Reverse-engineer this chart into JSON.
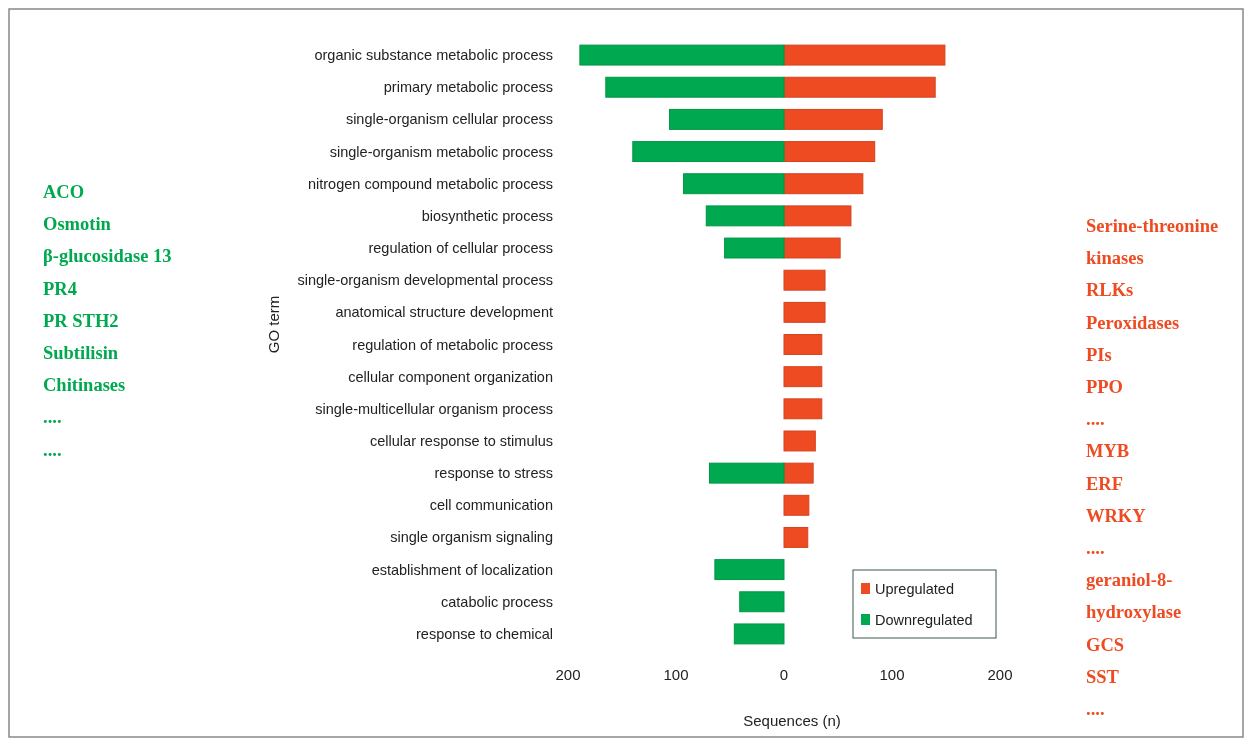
{
  "chart_data": {
    "type": "bar",
    "orientation": "horizontal",
    "xlabel": "Sequences (n)",
    "ylabel": "GO term",
    "categories": [
      "organic substance metabolic process",
      "primary metabolic process",
      "single-organism cellular process",
      "single-organism metabolic process",
      "nitrogen compound metabolic process",
      "biosynthetic process",
      "regulation of cellular process",
      "single-organism developmental process",
      "anatomical structure development",
      "regulation of metabolic process",
      "cellular component organization",
      "single-multicellular organism process",
      "cellular response to stimulus",
      "response to stress",
      "cell communication",
      "single organism signaling",
      "establishment of localization",
      "catabolic process",
      "response to chemical"
    ],
    "series": [
      {
        "name": "Upregulated",
        "color": "#ee4b22",
        "values": [
          149,
          140,
          91,
          84,
          73,
          62,
          52,
          38,
          38,
          35,
          35,
          35,
          29,
          27,
          23,
          22,
          null,
          null,
          null
        ]
      },
      {
        "name": "Downregulated",
        "color": "#00a84f",
        "values": [
          -189,
          -165,
          -106,
          -140,
          -93,
          -72,
          -55,
          null,
          null,
          null,
          null,
          null,
          null,
          -69,
          null,
          null,
          -64,
          -41,
          -46
        ]
      }
    ],
    "xlim": [
      -200,
      200
    ],
    "xticks": [
      {
        "value": -200,
        "label": "200"
      },
      {
        "value": -100,
        "label": "100"
      },
      0,
      100,
      200
    ],
    "grid": false,
    "legend": "bottom right",
    "annotations": [
      "ACO\nOsmotin\nβ-glucosidase 13\nPR4\nPR STH2\nSubtilisin\nChitinases\n....\n....",
      "Serine-threonine\nkinases\nRLKs\nPeroxidases\nPIs\nPPO\n....\nMYB\nERF\nWRKY\n....\ngeraniol-8-\nhydroxylase\nGCS\nSST\n...."
    ]
  }
}
